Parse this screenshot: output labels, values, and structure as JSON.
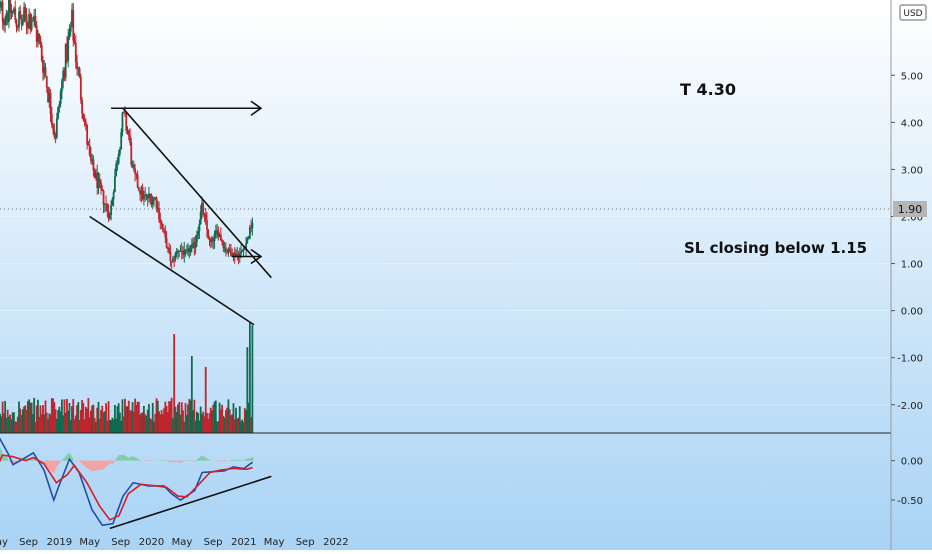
{
  "currency": "USD",
  "last_price_label": "1.90",
  "annotations": {
    "target": "T  4.30",
    "stop_loss": "SL closing below 1.15"
  },
  "colors": {
    "bull": "#0f6b4f",
    "bear": "#c0242c",
    "macd_line": "#1f4fa8",
    "signal_line": "#d41f2a",
    "hist_pos": "#7fcfa6",
    "hist_neg": "#f2a4a4",
    "trendline": "#111111",
    "background_top": "#ffffff",
    "background_bottom": "#a9d3f5"
  },
  "chart_data": [
    {
      "type": "candlestick",
      "title": "",
      "ylim": [
        -2.6,
        6.6
      ],
      "y_ticks": [
        "5.00",
        "4.00",
        "3.00",
        "2.00",
        "1.00",
        "0.00",
        "-1.00",
        "-2.00"
      ],
      "y_tick_values": [
        5,
        4,
        3,
        2,
        1,
        0,
        -1,
        -2
      ],
      "x_ticks": [
        "May",
        "Sep",
        "2019",
        "May",
        "Sep",
        "2020",
        "May",
        "Sep",
        "2021",
        "May",
        "Sep",
        "2022"
      ],
      "price_path": [
        {
          "date": "2018-05-01",
          "value": 6.3
        },
        {
          "date": "2018-06-15",
          "value": 6.4
        },
        {
          "date": "2018-08-01",
          "value": 6.1
        },
        {
          "date": "2018-09-15",
          "value": 6.3
        },
        {
          "date": "2018-11-01",
          "value": 5.2
        },
        {
          "date": "2018-12-15",
          "value": 3.7
        },
        {
          "date": "2019-01-20",
          "value": 5.2
        },
        {
          "date": "2019-02-20",
          "value": 6.1
        },
        {
          "date": "2019-03-20",
          "value": 4.9
        },
        {
          "date": "2019-05-01",
          "value": 3.2
        },
        {
          "date": "2019-06-15",
          "value": 2.5
        },
        {
          "date": "2019-07-20",
          "value": 2.0
        },
        {
          "date": "2019-08-10",
          "value": 2.9
        },
        {
          "date": "2019-09-10",
          "value": 4.1
        },
        {
          "date": "2019-10-01",
          "value": 3.8
        },
        {
          "date": "2019-10-20",
          "value": 2.9
        },
        {
          "date": "2019-12-01",
          "value": 2.4
        },
        {
          "date": "2020-01-15",
          "value": 2.4
        },
        {
          "date": "2020-02-20",
          "value": 1.6
        },
        {
          "date": "2020-03-20",
          "value": 1.0
        },
        {
          "date": "2020-04-15",
          "value": 1.3
        },
        {
          "date": "2020-05-15",
          "value": 1.2
        },
        {
          "date": "2020-06-20",
          "value": 1.4
        },
        {
          "date": "2020-07-20",
          "value": 2.2
        },
        {
          "date": "2020-08-20",
          "value": 1.4
        },
        {
          "date": "2020-09-20",
          "value": 1.7
        },
        {
          "date": "2020-10-20",
          "value": 1.3
        },
        {
          "date": "2020-11-20",
          "value": 1.2
        },
        {
          "date": "2020-12-20",
          "value": 1.2
        },
        {
          "date": "2021-01-15",
          "value": 1.5
        },
        {
          "date": "2021-02-05",
          "value": 1.9
        }
      ],
      "volume_spikes": [
        {
          "date": "2020-04-01",
          "level": 0.9
        },
        {
          "date": "2020-06-10",
          "level": 0.7
        },
        {
          "date": "2020-08-01",
          "level": 0.6
        },
        {
          "date": "2021-01-15",
          "level": 0.78
        },
        {
          "date": "2021-01-25",
          "level": 1.0
        },
        {
          "date": "2021-02-05",
          "level": 0.98
        }
      ],
      "lines": [
        {
          "name": "target",
          "from": {
            "date": "2019-07-25",
            "value": 4.3
          },
          "to": {
            "date": "2021-03-10",
            "value": 4.3
          }
        },
        {
          "name": "upper-trendline",
          "from": {
            "date": "2019-09-10",
            "value": 4.3
          },
          "to": {
            "date": "2021-04-20",
            "value": 0.7
          }
        },
        {
          "name": "lower-trendline",
          "from": {
            "date": "2019-05-01",
            "value": 2.0
          },
          "to": {
            "date": "2021-02-10",
            "value": -0.3
          }
        },
        {
          "name": "stop-loss",
          "from": {
            "date": "2020-11-15",
            "value": 1.15
          },
          "to": {
            "date": "2021-03-10",
            "value": 1.15
          }
        }
      ]
    },
    {
      "type": "line",
      "indicator": "MACD",
      "ylim": [
        -0.88,
        0.3
      ],
      "y_ticks": [
        "0.00",
        "-0.50"
      ],
      "y_tick_values": [
        0,
        -0.5
      ],
      "series": [
        {
          "values": [
            {
              "date": "2018-04-15",
              "value": 0.0
            },
            {
              "date": "2018-05-10",
              "value": 0.28
            },
            {
              "date": "2018-06-10",
              "value": 0.1
            },
            {
              "date": "2018-07-01",
              "value": -0.05
            },
            {
              "date": "2018-08-20",
              "value": 0.04
            },
            {
              "date": "2018-09-20",
              "value": 0.1
            },
            {
              "date": "2018-11-01",
              "value": -0.12
            },
            {
              "date": "2018-12-10",
              "value": -0.5
            },
            {
              "date": "2018-12-30",
              "value": -0.32
            },
            {
              "date": "2019-02-10",
              "value": 0.02
            },
            {
              "date": "2019-03-20",
              "value": -0.15
            },
            {
              "date": "2019-05-10",
              "value": -0.62
            },
            {
              "date": "2019-06-20",
              "value": -0.82
            },
            {
              "date": "2019-08-01",
              "value": -0.8
            },
            {
              "date": "2019-09-10",
              "value": -0.45
            },
            {
              "date": "2019-10-20",
              "value": -0.28
            },
            {
              "date": "2019-12-20",
              "value": -0.32
            },
            {
              "date": "2020-02-20",
              "value": -0.32
            },
            {
              "date": "2020-03-20",
              "value": -0.42
            },
            {
              "date": "2020-04-25",
              "value": -0.5
            },
            {
              "date": "2020-06-20",
              "value": -0.38
            },
            {
              "date": "2020-07-20",
              "value": -0.15
            },
            {
              "date": "2020-09-01",
              "value": -0.14
            },
            {
              "date": "2020-10-15",
              "value": -0.13
            },
            {
              "date": "2020-11-20",
              "value": -0.08
            },
            {
              "date": "2021-01-01",
              "value": -0.1
            },
            {
              "date": "2021-02-05",
              "value": -0.02
            }
          ]
        },
        {
          "values": [
            {
              "date": "2018-04-15",
              "value": -0.18
            },
            {
              "date": "2018-05-20",
              "value": 0.07
            },
            {
              "date": "2018-07-01",
              "value": 0.05
            },
            {
              "date": "2018-08-20",
              "value": 0.0
            },
            {
              "date": "2018-09-20",
              "value": 0.04
            },
            {
              "date": "2018-11-01",
              "value": -0.04
            },
            {
              "date": "2018-12-20",
              "value": -0.28
            },
            {
              "date": "2019-02-01",
              "value": -0.18
            },
            {
              "date": "2019-03-01",
              "value": -0.06
            },
            {
              "date": "2019-04-20",
              "value": -0.28
            },
            {
              "date": "2019-06-10",
              "value": -0.58
            },
            {
              "date": "2019-07-20",
              "value": -0.75
            },
            {
              "date": "2019-08-25",
              "value": -0.7
            },
            {
              "date": "2019-10-01",
              "value": -0.42
            },
            {
              "date": "2019-11-20",
              "value": -0.3
            },
            {
              "date": "2020-01-20",
              "value": -0.32
            },
            {
              "date": "2020-03-01",
              "value": -0.34
            },
            {
              "date": "2020-04-15",
              "value": -0.45
            },
            {
              "date": "2020-05-20",
              "value": -0.46
            },
            {
              "date": "2020-07-01",
              "value": -0.32
            },
            {
              "date": "2020-08-20",
              "value": -0.15
            },
            {
              "date": "2020-10-01",
              "value": -0.12
            },
            {
              "date": "2020-11-20",
              "value": -0.1
            },
            {
              "date": "2021-01-10",
              "value": -0.11
            },
            {
              "date": "2021-02-05",
              "value": -0.09
            }
          ]
        }
      ],
      "lines": [
        {
          "name": "macd-trendline",
          "from": {
            "date": "2019-07-20",
            "value": -0.86
          },
          "to": {
            "date": "2021-04-20",
            "value": -0.2
          }
        }
      ]
    }
  ]
}
